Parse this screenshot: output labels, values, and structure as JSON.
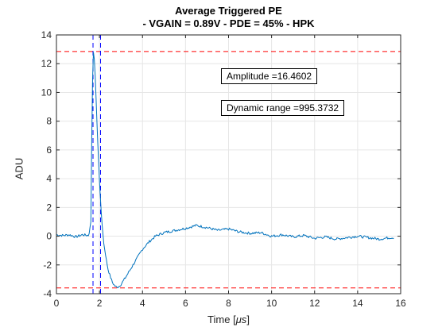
{
  "chart_data": {
    "type": "line",
    "title": "Average Triggered PE",
    "subtitle": "- VGAIN = 0.89V - PDE = 45% - HPK",
    "xlabel_prefix": "Time [",
    "xlabel_unit": "μs",
    "xlabel_suffix": "]",
    "ylabel": "ADU",
    "xlim": [
      0,
      16
    ],
    "ylim": [
      -4,
      14
    ],
    "xticks": [
      "0",
      "2",
      "4",
      "6",
      "8",
      "10",
      "12",
      "14",
      "16"
    ],
    "yticks": [
      "-4",
      "-2",
      "0",
      "2",
      "4",
      "6",
      "8",
      "10",
      "12",
      "14"
    ],
    "grid": true,
    "series": [
      {
        "color": "#0072bd",
        "x": [
          0,
          0.3,
          0.6,
          0.9,
          1.2,
          1.5,
          1.6,
          1.65,
          1.7,
          1.75,
          1.8,
          1.85,
          1.9,
          2.0,
          2.1,
          2.2,
          2.3,
          2.4,
          2.5,
          2.6,
          2.7,
          2.8,
          2.9,
          3.0,
          3.2,
          3.4,
          3.6,
          3.8,
          4.0,
          4.3,
          4.6,
          5.0,
          5.5,
          6.0,
          6.5,
          7.0,
          7.5,
          8.0,
          8.5,
          9.0,
          9.5,
          10.0,
          10.5,
          11.0,
          11.5,
          12.0,
          12.5,
          13.0,
          13.5,
          14.0,
          14.5,
          15.0,
          15.5,
          15.7
        ],
        "y": [
          0.1,
          0.05,
          0.1,
          -0.05,
          0.1,
          0.05,
          1.0,
          8.0,
          12.9,
          12.6,
          11.2,
          9.3,
          7.2,
          3.8,
          1.2,
          -0.5,
          -1.5,
          -2.3,
          -2.8,
          -3.2,
          -3.45,
          -3.55,
          -3.5,
          -3.35,
          -2.9,
          -2.4,
          -1.9,
          -1.4,
          -0.9,
          -0.4,
          0.0,
          0.25,
          0.4,
          0.55,
          0.75,
          0.6,
          0.4,
          0.5,
          0.3,
          0.2,
          0.25,
          0.0,
          0.1,
          -0.05,
          0.05,
          -0.15,
          -0.05,
          -0.2,
          -0.1,
          0.0,
          -0.1,
          -0.2,
          -0.1,
          -0.1
        ]
      }
    ],
    "reference_lines": {
      "horizontal": [
        {
          "y": 12.85,
          "color": "#ff0000",
          "style": "dashed"
        },
        {
          "y": -3.6,
          "color": "#ff0000",
          "style": "dashed"
        }
      ],
      "vertical": [
        {
          "x": 1.7,
          "color": "#0000ff",
          "style": "dashed"
        },
        {
          "x": 2.05,
          "color": "#0000ff",
          "style": "dashed"
        }
      ]
    },
    "annotations": [
      {
        "text": "Amplitude =16.4602"
      },
      {
        "text": "Dynamic range =995.3732"
      }
    ]
  }
}
